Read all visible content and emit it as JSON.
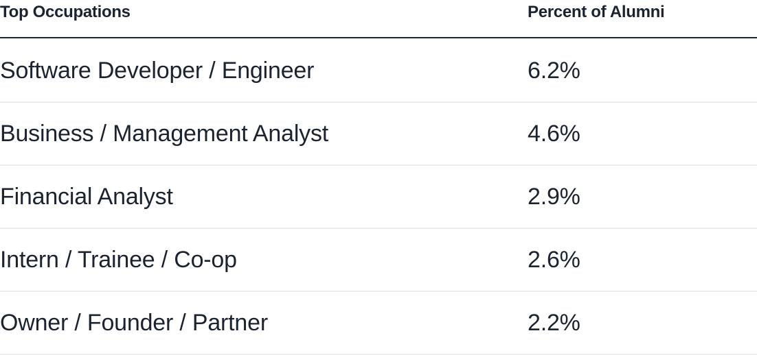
{
  "table": {
    "headers": {
      "occupation": "Top Occupations",
      "percent": "Percent of Alumni"
    },
    "rows": [
      {
        "occupation": "Software Developer / Engineer",
        "percent": "6.2%"
      },
      {
        "occupation": "Business / Management Analyst",
        "percent": "4.6%"
      },
      {
        "occupation": "Financial Analyst",
        "percent": "2.9%"
      },
      {
        "occupation": "Intern / Trainee / Co-op",
        "percent": "2.6%"
      },
      {
        "occupation": "Owner / Founder / Partner",
        "percent": "2.2%"
      }
    ]
  }
}
